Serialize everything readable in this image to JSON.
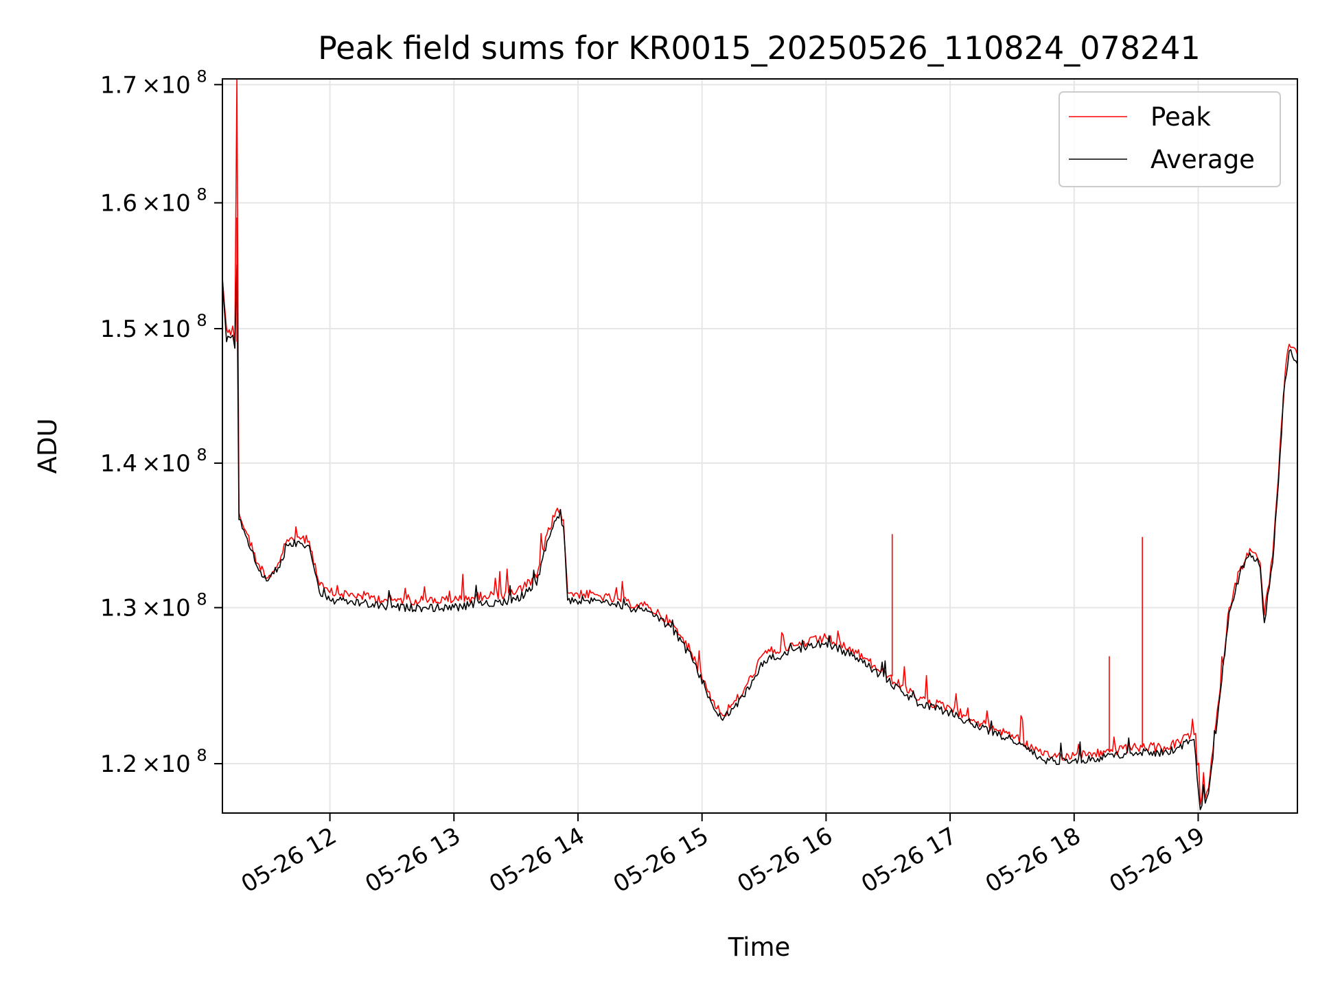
{
  "chart_data": {
    "type": "line",
    "title": "Peak field sums for KR0015_20250526_110824_078241",
    "xlabel": "Time",
    "ylabel": "ADU",
    "yscale": "log",
    "xlim": [
      "2025-05-26 11:08",
      "2025-05-26 19:48"
    ],
    "ylim": [
      117000000,
      170500000
    ],
    "x_ticks": [
      {
        "t": "2025-05-26 12:00",
        "label": "05-26 12"
      },
      {
        "t": "2025-05-26 13:00",
        "label": "05-26 13"
      },
      {
        "t": "2025-05-26 14:00",
        "label": "05-26 14"
      },
      {
        "t": "2025-05-26 15:00",
        "label": "05-26 15"
      },
      {
        "t": "2025-05-26 16:00",
        "label": "05-26 16"
      },
      {
        "t": "2025-05-26 17:00",
        "label": "05-26 17"
      },
      {
        "t": "2025-05-26 18:00",
        "label": "05-26 18"
      },
      {
        "t": "2025-05-26 19:00",
        "label": "05-26 19"
      }
    ],
    "y_ticks": [
      {
        "value": 120000000,
        "mant": "1.2",
        "exp": "8"
      },
      {
        "value": 130000000,
        "mant": "1.3",
        "exp": "8"
      },
      {
        "value": 140000000,
        "mant": "1.4",
        "exp": "8"
      },
      {
        "value": 150000000,
        "mant": "1.5",
        "exp": "8"
      },
      {
        "value": 160000000,
        "mant": "1.6",
        "exp": "8"
      },
      {
        "value": 170000000,
        "mant": "1.7",
        "exp": "8"
      }
    ],
    "grid": true,
    "legend_position": "top-right",
    "series": [
      {
        "name": "Peak",
        "color": "#ff0000",
        "points": [
          [
            "2025-05-26 11:08",
            154000000.0
          ],
          [
            "2025-05-26 11:10",
            150000000.0
          ],
          [
            "2025-05-26 11:12",
            149500000.0
          ],
          [
            "2025-05-26 11:13",
            150200000.0
          ],
          [
            "2025-05-26 11:14",
            149000000.0
          ],
          [
            "2025-05-26 11:15",
            170500000.0
          ],
          [
            "2025-05-26 11:16",
            136500000.0
          ],
          [
            "2025-05-26 11:20",
            135000000.0
          ],
          [
            "2025-05-26 11:25",
            133000000.0
          ],
          [
            "2025-05-26 11:30",
            132000000.0
          ],
          [
            "2025-05-26 11:35",
            133000000.0
          ],
          [
            "2025-05-26 11:40",
            134500000.0
          ],
          [
            "2025-05-26 11:45",
            134800000.0
          ],
          [
            "2025-05-26 11:50",
            134500000.0
          ],
          [
            "2025-05-26 11:55",
            131500000.0
          ],
          [
            "2025-05-26 12:00",
            131000000.0
          ],
          [
            "2025-05-26 12:15",
            130800000.0
          ],
          [
            "2025-05-26 12:30",
            130500000.0
          ],
          [
            "2025-05-26 12:45",
            130500000.0
          ],
          [
            "2025-05-26 13:00",
            130500000.0
          ],
          [
            "2025-05-26 13:15",
            130800000.0
          ],
          [
            "2025-05-26 13:30",
            131000000.0
          ],
          [
            "2025-05-26 13:40",
            132000000.0
          ],
          [
            "2025-05-26 13:45",
            135000000.0
          ],
          [
            "2025-05-26 13:50",
            136800000.0
          ],
          [
            "2025-05-26 13:53",
            136000000.0
          ],
          [
            "2025-05-26 13:55",
            131000000.0
          ],
          [
            "2025-05-26 14:10",
            130800000.0
          ],
          [
            "2025-05-26 14:25",
            130300000.0
          ],
          [
            "2025-05-26 14:35",
            130000000.0
          ],
          [
            "2025-05-26 14:45",
            129000000.0
          ],
          [
            "2025-05-26 14:55",
            127000000.0
          ],
          [
            "2025-05-26 15:05",
            124000000.0
          ],
          [
            "2025-05-26 15:10",
            123000000.0
          ],
          [
            "2025-05-26 15:20",
            124500000.0
          ],
          [
            "2025-05-26 15:30",
            127000000.0
          ],
          [
            "2025-05-26 15:45",
            127500000.0
          ],
          [
            "2025-05-26 16:00",
            128000000.0
          ],
          [
            "2025-05-26 16:15",
            127000000.0
          ],
          [
            "2025-05-26 16:30",
            125500000.0
          ],
          [
            "2025-05-26 16:45",
            124000000.0
          ],
          [
            "2025-05-26 17:00",
            123500000.0
          ],
          [
            "2025-05-26 17:15",
            122500000.0
          ],
          [
            "2025-05-26 17:30",
            121800000.0
          ],
          [
            "2025-05-26 17:45",
            120500000.0
          ],
          [
            "2025-05-26 18:00",
            120500000.0
          ],
          [
            "2025-05-26 18:15",
            120700000.0
          ],
          [
            "2025-05-26 18:30",
            121000000.0
          ],
          [
            "2025-05-26 18:45",
            121000000.0
          ],
          [
            "2025-05-26 18:58",
            121800000.0
          ],
          [
            "2025-05-26 19:01",
            117500000.0
          ],
          [
            "2025-05-26 19:05",
            118500000.0
          ],
          [
            "2025-05-26 19:10",
            124000000.0
          ],
          [
            "2025-05-26 19:15",
            130000000.0
          ],
          [
            "2025-05-26 19:20",
            132500000.0
          ],
          [
            "2025-05-26 19:25",
            134000000.0
          ],
          [
            "2025-05-26 19:30",
            133000000.0
          ],
          [
            "2025-05-26 19:32",
            129500000.0
          ],
          [
            "2025-05-26 19:36",
            133500000.0
          ],
          [
            "2025-05-26 19:38",
            137500000.0
          ],
          [
            "2025-05-26 19:42",
            146500000.0
          ],
          [
            "2025-05-26 19:44",
            148800000.0
          ],
          [
            "2025-05-26 19:48",
            148000000.0
          ]
        ]
      },
      {
        "name": "Average",
        "color": "#000000",
        "points": [
          [
            "2025-05-26 11:08",
            153800000.0
          ],
          [
            "2025-05-26 11:10",
            149000000.0
          ],
          [
            "2025-05-26 11:12",
            149300000.0
          ],
          [
            "2025-05-26 11:13",
            149500000.0
          ],
          [
            "2025-05-26 11:14",
            148500000.0
          ],
          [
            "2025-05-26 11:15",
            155000000.0
          ],
          [
            "2025-05-26 11:16",
            136000000.0
          ],
          [
            "2025-05-26 11:20",
            134700000.0
          ],
          [
            "2025-05-26 11:25",
            132700000.0
          ],
          [
            "2025-05-26 11:30",
            131800000.0
          ],
          [
            "2025-05-26 11:35",
            132700000.0
          ],
          [
            "2025-05-26 11:40",
            134200000.0
          ],
          [
            "2025-05-26 11:45",
            134500000.0
          ],
          [
            "2025-05-26 11:50",
            134200000.0
          ],
          [
            "2025-05-26 11:55",
            131000000.0
          ],
          [
            "2025-05-26 12:00",
            130500000.0
          ],
          [
            "2025-05-26 12:15",
            130300000.0
          ],
          [
            "2025-05-26 12:30",
            130000000.0
          ],
          [
            "2025-05-26 12:45",
            130000000.0
          ],
          [
            "2025-05-26 13:00",
            130000000.0
          ],
          [
            "2025-05-26 13:15",
            130300000.0
          ],
          [
            "2025-05-26 13:30",
            130500000.0
          ],
          [
            "2025-05-26 13:40",
            131500000.0
          ],
          [
            "2025-05-26 13:45",
            134500000.0
          ],
          [
            "2025-05-26 13:50",
            136200000.0
          ],
          [
            "2025-05-26 13:53",
            135500000.0
          ],
          [
            "2025-05-26 13:55",
            130500000.0
          ],
          [
            "2025-05-26 14:10",
            130500000.0
          ],
          [
            "2025-05-26 14:25",
            130000000.0
          ],
          [
            "2025-05-26 14:35",
            129700000.0
          ],
          [
            "2025-05-26 14:45",
            128700000.0
          ],
          [
            "2025-05-26 14:55",
            126700000.0
          ],
          [
            "2025-05-26 15:05",
            123700000.0
          ],
          [
            "2025-05-26 15:10",
            122700000.0
          ],
          [
            "2025-05-26 15:20",
            124200000.0
          ],
          [
            "2025-05-26 15:30",
            126500000.0
          ],
          [
            "2025-05-26 15:45",
            127200000.0
          ],
          [
            "2025-05-26 16:00",
            127700000.0
          ],
          [
            "2025-05-26 16:15",
            126700000.0
          ],
          [
            "2025-05-26 16:30",
            125200000.0
          ],
          [
            "2025-05-26 16:45",
            123700000.0
          ],
          [
            "2025-05-26 17:00",
            123200000.0
          ],
          [
            "2025-05-26 17:15",
            122200000.0
          ],
          [
            "2025-05-26 17:30",
            121500000.0
          ],
          [
            "2025-05-26 17:45",
            120200000.0
          ],
          [
            "2025-05-26 18:00",
            120200000.0
          ],
          [
            "2025-05-26 18:15",
            120400000.0
          ],
          [
            "2025-05-26 18:30",
            120700000.0
          ],
          [
            "2025-05-26 18:45",
            120700000.0
          ],
          [
            "2025-05-26 18:58",
            121500000.0
          ],
          [
            "2025-05-26 19:01",
            117200000.0
          ],
          [
            "2025-05-26 19:05",
            118200000.0
          ],
          [
            "2025-05-26 19:10",
            123700000.0
          ],
          [
            "2025-05-26 19:15",
            129700000.0
          ],
          [
            "2025-05-26 19:20",
            132200000.0
          ],
          [
            "2025-05-26 19:25",
            133700000.0
          ],
          [
            "2025-05-26 19:30",
            132700000.0
          ],
          [
            "2025-05-26 19:32",
            129000000.0
          ],
          [
            "2025-05-26 19:36",
            133000000.0
          ],
          [
            "2025-05-26 19:38",
            137000000.0
          ],
          [
            "2025-05-26 19:42",
            146000000.0
          ],
          [
            "2025-05-26 19:44",
            148300000.0
          ],
          [
            "2025-05-26 19:48",
            147300000.0
          ]
        ]
      }
    ],
    "spikes": [
      {
        "series": "Peak",
        "t": "2025-05-26 11:15",
        "value": 158800000.0
      },
      {
        "series": "Peak",
        "t": "2025-05-26 16:32",
        "value": 135000000.0
      },
      {
        "series": "Peak",
        "t": "2025-05-26 18:33",
        "value": 134800000.0
      },
      {
        "series": "Peak",
        "t": "2025-05-26 18:17",
        "value": 126800000.0
      }
    ]
  }
}
